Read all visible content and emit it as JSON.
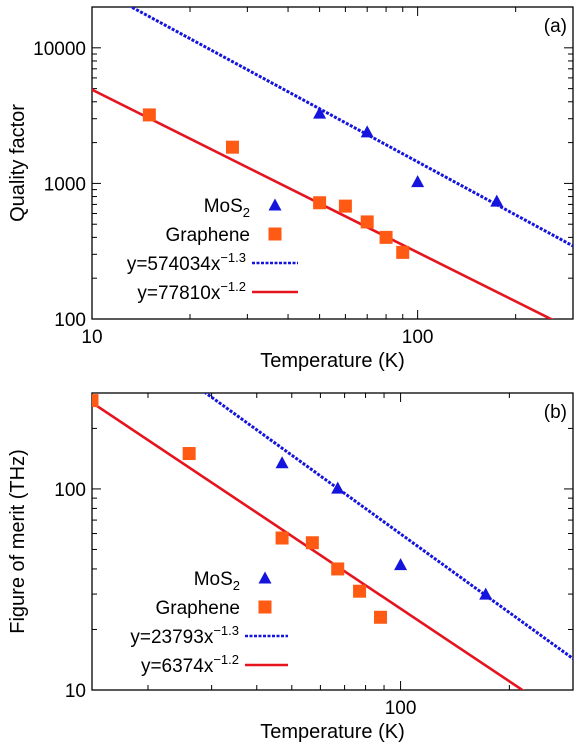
{
  "colors": {
    "mos2": "#1414dc",
    "graphene_marker": "#ff5a14",
    "graphene_fit": "#e6141e",
    "axis": "#000000",
    "background": "#ffffff"
  },
  "chart_data": [
    {
      "type": "scatter",
      "panel_label": "(a)",
      "title": "",
      "xlabel": "Temperature (K)",
      "ylabel": "Quality factor",
      "xscale": "log",
      "yscale": "log",
      "xlim": [
        10,
        300
      ],
      "ylim": [
        100,
        20000
      ],
      "x_ticks": [
        10,
        100
      ],
      "x_tick_labels": [
        "10",
        "100"
      ],
      "y_ticks": [
        100,
        1000,
        10000
      ],
      "y_tick_labels": [
        "100",
        "1000",
        "10000"
      ],
      "grid": false,
      "legend_position": "middle-left",
      "series": [
        {
          "name": "MoS",
          "name_sub": "2",
          "kind": "points",
          "marker": "triangle",
          "color_key": "mos2",
          "x": [
            50,
            70,
            100,
            175
          ],
          "y": [
            3300,
            2400,
            1030,
            740
          ]
        },
        {
          "name": "Graphene",
          "kind": "points",
          "marker": "square",
          "color_key": "graphene_marker",
          "x": [
            15,
            27,
            50,
            60,
            70,
            80,
            90
          ],
          "y": [
            3200,
            1850,
            720,
            680,
            520,
            400,
            310
          ]
        },
        {
          "name": "y=574034x",
          "name_sup": "−1.3",
          "kind": "fit",
          "dash": true,
          "color_key": "mos2",
          "a": 574034,
          "b": -1.3
        },
        {
          "name": "y=77810x",
          "name_sup": "−1.2",
          "kind": "fit",
          "dash": false,
          "color_key": "graphene_fit",
          "a": 77810,
          "b": -1.2
        }
      ]
    },
    {
      "type": "scatter",
      "panel_label": "(b)",
      "title": "",
      "xlabel": "Temperature (K)",
      "ylabel": "Figure of merit (THz)",
      "xscale": "log",
      "yscale": "log",
      "xlim": [
        14,
        300
      ],
      "ylim": [
        10,
        300
      ],
      "x_ticks": [
        100
      ],
      "x_tick_labels": [
        "100"
      ],
      "y_ticks": [
        10,
        100
      ],
      "y_tick_labels": [
        "10",
        "100"
      ],
      "grid": false,
      "legend_position": "bottom-left",
      "series": [
        {
          "name": "MoS",
          "name_sub": "2",
          "kind": "points",
          "marker": "triangle",
          "color_key": "mos2",
          "x": [
            47,
            67,
            100,
            172
          ],
          "y": [
            135,
            101,
            42,
            30
          ]
        },
        {
          "name": "Graphene",
          "kind": "points",
          "marker": "square",
          "color_key": "graphene_marker",
          "x": [
            14,
            26,
            47,
            57,
            67,
            77,
            88
          ],
          "y": [
            275,
            150,
            57,
            54,
            40,
            31,
            23
          ]
        },
        {
          "name": "y=23793x",
          "name_sup": "−1.3",
          "kind": "fit",
          "dash": true,
          "color_key": "mos2",
          "a": 23793,
          "b": -1.3
        },
        {
          "name": "y=6374x",
          "name_sup": "−1.2",
          "kind": "fit",
          "dash": false,
          "color_key": "graphene_fit",
          "a": 6374,
          "b": -1.2
        }
      ]
    }
  ]
}
